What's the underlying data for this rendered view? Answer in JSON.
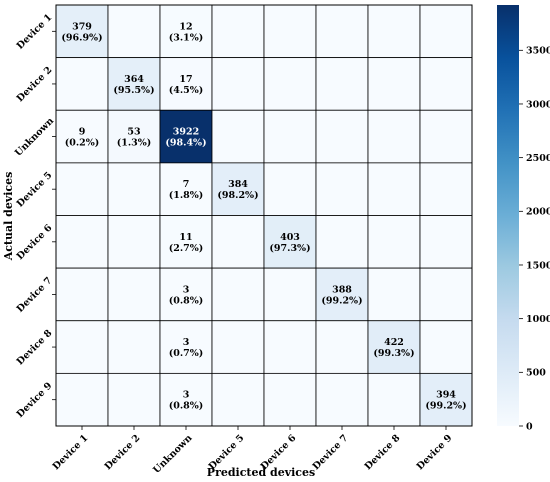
{
  "chart_data": {
    "type": "heatmap",
    "title": "",
    "xlabel": "Predicted devices",
    "ylabel": "Actual devices",
    "row_labels": [
      "Device 1",
      "Device 2",
      "Unknown",
      "Device 5",
      "Device 6",
      "Device 7",
      "Device 8",
      "Device 9"
    ],
    "col_labels": [
      "Device 1",
      "Device 2",
      "Unknown",
      "Device 5",
      "Device 6",
      "Device 7",
      "Device 8",
      "Device 9"
    ],
    "values": [
      [
        379,
        0,
        12,
        0,
        0,
        0,
        0,
        0
      ],
      [
        0,
        364,
        17,
        0,
        0,
        0,
        0,
        0
      ],
      [
        9,
        53,
        3922,
        0,
        0,
        0,
        0,
        0
      ],
      [
        0,
        0,
        7,
        384,
        0,
        0,
        0,
        0
      ],
      [
        0,
        0,
        11,
        0,
        403,
        0,
        0,
        0
      ],
      [
        0,
        0,
        3,
        0,
        0,
        388,
        0,
        0
      ],
      [
        0,
        0,
        3,
        0,
        0,
        0,
        422,
        0
      ],
      [
        0,
        0,
        3,
        0,
        0,
        0,
        0,
        394
      ]
    ],
    "cell_labels": [
      [
        "379\n(96.9%)",
        "",
        "12\n(3.1%)",
        "",
        "",
        "",
        "",
        ""
      ],
      [
        "",
        "364\n(95.5%)",
        "17\n(4.5%)",
        "",
        "",
        "",
        "",
        ""
      ],
      [
        "9\n(0.2%)",
        "53\n(1.3%)",
        "3922\n(98.4%)",
        "",
        "",
        "",
        "",
        ""
      ],
      [
        "",
        "",
        "7\n(1.8%)",
        "384\n(98.2%)",
        "",
        "",
        "",
        ""
      ],
      [
        "",
        "",
        "11\n(2.7%)",
        "",
        "403\n(97.3%)",
        "",
        "",
        ""
      ],
      [
        "",
        "",
        "3\n(0.8%)",
        "",
        "",
        "388\n(99.2%)",
        "",
        ""
      ],
      [
        "",
        "",
        "3\n(0.7%)",
        "",
        "",
        "",
        "422\n(99.3%)",
        ""
      ],
      [
        "",
        "",
        "3\n(0.8%)",
        "",
        "",
        "",
        "",
        "394\n(99.2%)"
      ]
    ],
    "colorbar": {
      "min": 0,
      "max": 3922,
      "ticks": [
        0,
        500,
        1000,
        1500,
        2000,
        2500,
        3000,
        3500
      ],
      "colormap": "Blues"
    },
    "grid": true
  }
}
